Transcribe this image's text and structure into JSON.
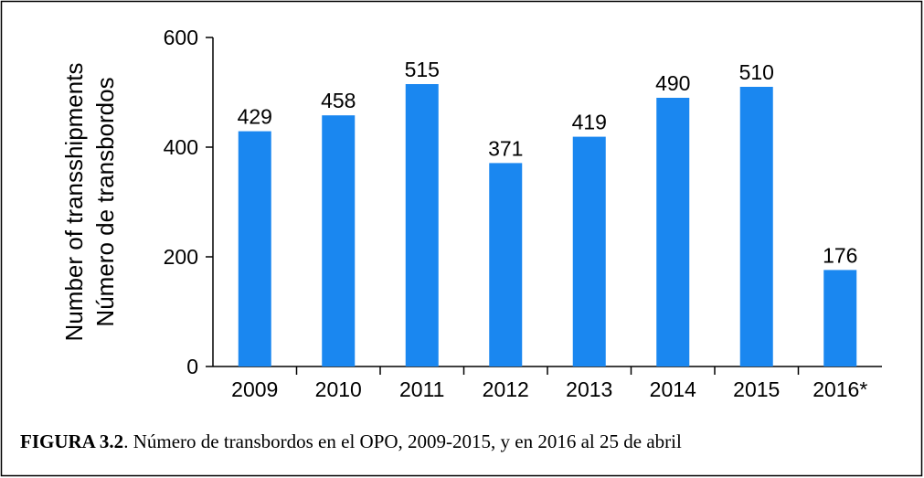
{
  "chart_data": {
    "type": "bar",
    "ylabel": [
      "Number of transshipments",
      "Número de transbordos"
    ],
    "categories": [
      "2009",
      "2010",
      "2011",
      "2012",
      "2013",
      "2014",
      "2015",
      "2016*"
    ],
    "values": [
      429,
      458,
      515,
      371,
      419,
      490,
      510,
      176
    ],
    "color": "#1a87f0",
    "ylim": [
      0,
      600
    ],
    "yticks": [
      0,
      200,
      400,
      600
    ],
    "grid": false,
    "caption": {
      "label": "FIGURA 3.2",
      "text": ". Número de transbordos en el OPO, 2009-2015, y en 2016 al 25 de abril"
    }
  }
}
